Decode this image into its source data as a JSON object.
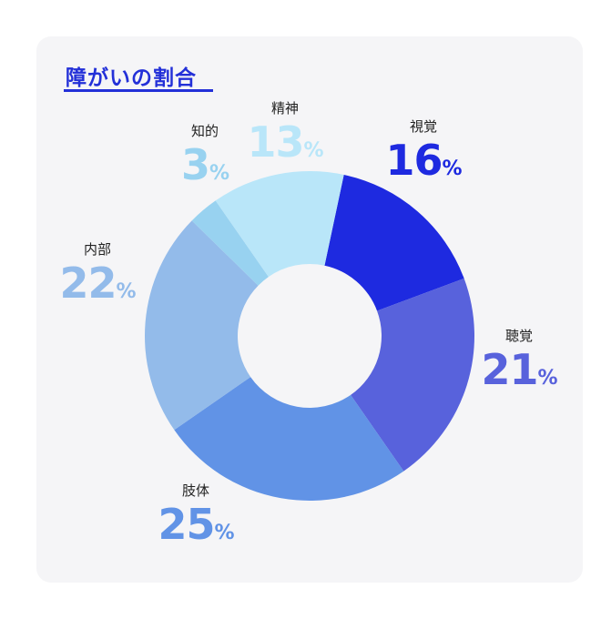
{
  "title": "障がいの割合",
  "chart_data": {
    "type": "pie",
    "title": "障がいの割合",
    "unit": "%",
    "slices": [
      {
        "label": "視覚",
        "value": 16,
        "color": "#1e2ae0"
      },
      {
        "label": "聴覚",
        "value": 21,
        "color": "#5862dc"
      },
      {
        "label": "肢体",
        "value": 25,
        "color": "#6193e6"
      },
      {
        "label": "内部",
        "value": 22,
        "color": "#93bbea"
      },
      {
        "label": "知的",
        "value": 3,
        "color": "#98d2f0"
      },
      {
        "label": "精神",
        "value": 13,
        "color": "#b9e6f9"
      }
    ]
  }
}
